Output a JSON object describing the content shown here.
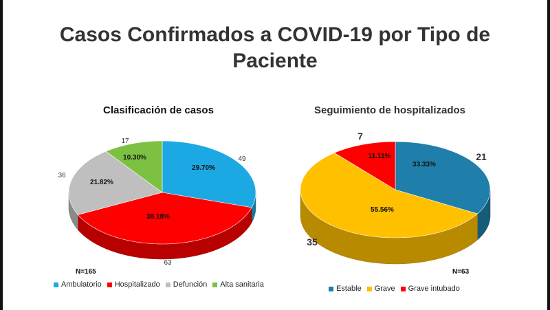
{
  "title": "Casos Confirmados a COVID-19 por Tipo de Paciente",
  "chart_data": [
    {
      "type": "pie",
      "title": "Clasificación de casos",
      "n_label": "N=165",
      "legend_position": "bottom",
      "slices": [
        {
          "name": "Ambulatorio",
          "value": 49,
          "value_label": "49",
          "percent_label": "29.70%",
          "color": "#1CA8E3"
        },
        {
          "name": "Hospitalizado",
          "value": 63,
          "value_label": "63",
          "percent_label": "38.18%",
          "color": "#FF0000"
        },
        {
          "name": "Defunción",
          "value": 36,
          "value_label": "36",
          "percent_label": "21.82%",
          "color": "#BFBFBF"
        },
        {
          "name": "Alta sanitaria",
          "value": 17,
          "value_label": "17",
          "percent_label": "10.30%",
          "color": "#7DC142"
        }
      ]
    },
    {
      "type": "pie",
      "title": "Seguimiento de hospitalizados",
      "n_label": "N=63",
      "legend_position": "bottom",
      "slices": [
        {
          "name": "Estable",
          "value": 21,
          "value_label": "21",
          "percent_label": "33.33%",
          "color": "#1F7EAA"
        },
        {
          "name": "Grave",
          "value": 35,
          "value_label": "35",
          "percent_label": "55.56%",
          "color": "#FFC000"
        },
        {
          "name": "Grave intubado",
          "value": 7,
          "value_label": "7",
          "percent_label": "11.11%",
          "color": "#FF0000"
        }
      ]
    }
  ]
}
